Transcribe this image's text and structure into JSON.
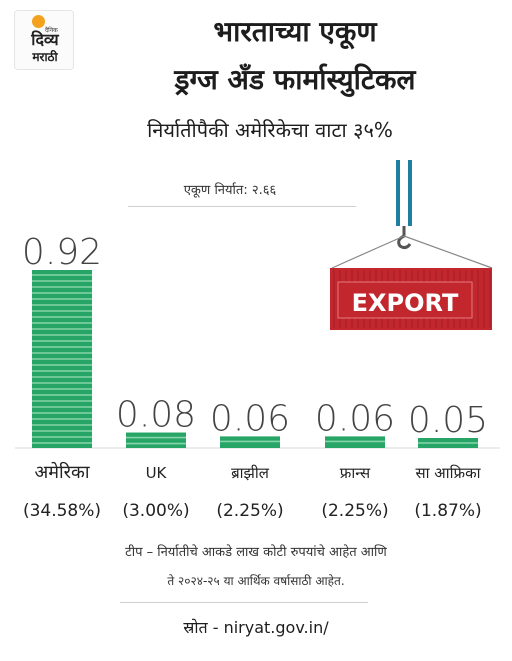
{
  "logo": {
    "line1": "दिव्य",
    "line2": "मराठी",
    "small": "दैनिक"
  },
  "title": {
    "line1": "भारताच्या एकूण",
    "line2": "ड्रग्ज अँड फार्मास्युटिकल"
  },
  "subtitle": "निर्यातीपैकी अमेरिकेचा वाटा ३५%",
  "total_label": "एकूण निर्यात: २.६६",
  "export_sign": "EXPORT",
  "colors": {
    "bar": "#27a567",
    "bar_stripe": "#86d4a9",
    "container": "#c1272d",
    "crane": "#1f7fa1"
  },
  "chart_data": {
    "type": "bar",
    "categories": [
      "अमेरिका",
      "UK",
      "ब्राझील",
      "फ्रान्स",
      "सा आफ्रिका"
    ],
    "values": [
      0.92,
      0.08,
      0.06,
      0.06,
      0.05
    ],
    "value_labels": [
      "0.92",
      "0.08",
      "0.06",
      "0.06",
      "0.05"
    ],
    "percent_labels": [
      "(34.58%)",
      "(3.00%)",
      "(2.25%)",
      "(2.25%)",
      "(1.87%)"
    ],
    "ylim": [
      0,
      1
    ],
    "grid": false,
    "legend": "none"
  },
  "note": {
    "line1": "टीप – निर्यातीचे आकडे लाख कोटी रुपयांचे आहेत आणि",
    "line2": "ते २०२४-२५ या आर्थिक वर्षासाठी आहेत."
  },
  "source": "स्रोत - niryat.gov.in/"
}
